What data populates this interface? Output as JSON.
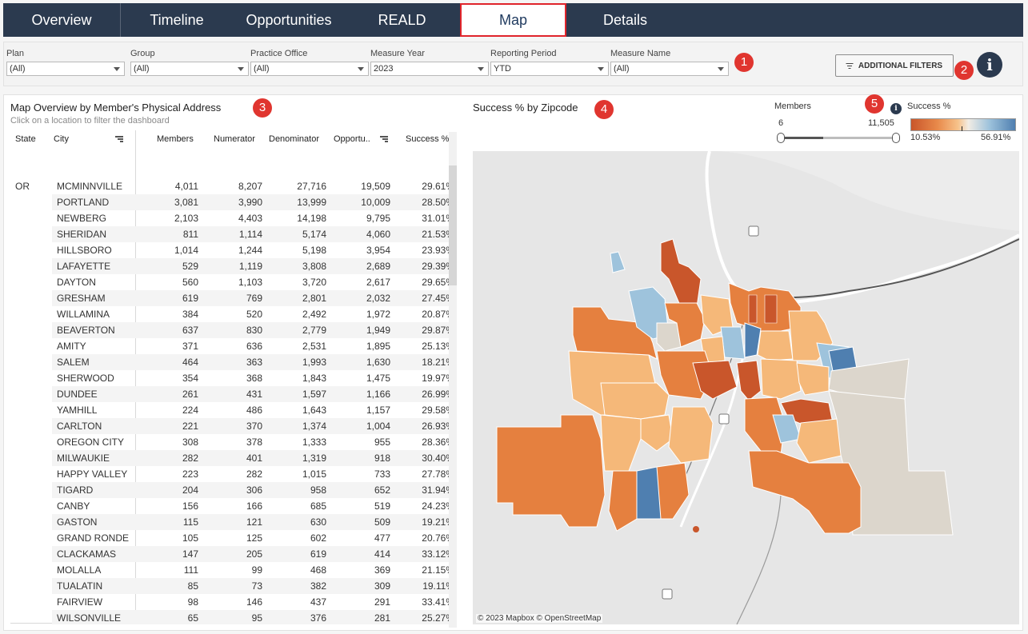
{
  "nav": {
    "tabs": [
      {
        "label": "Overview"
      },
      {
        "label": "Timeline"
      },
      {
        "label": "Opportunities"
      },
      {
        "label": "REALD"
      },
      {
        "label": "Map",
        "active": true
      },
      {
        "label": "Details"
      }
    ]
  },
  "filters": [
    {
      "label": "Plan",
      "value": "(All)"
    },
    {
      "label": "Group",
      "value": "(All)"
    },
    {
      "label": "Practice Office",
      "value": "(All)"
    },
    {
      "label": "Measure Year",
      "value": "2023"
    },
    {
      "label": "Reporting Period",
      "value": "YTD"
    },
    {
      "label": "Measure Name",
      "value": "(All)"
    }
  ],
  "badges": [
    "1",
    "2",
    "3",
    "4",
    "5"
  ],
  "additional_filters_label": "ADDITIONAL FILTERS",
  "info_glyph": "i",
  "left_panel": {
    "title": "Map Overview by Member's Physical Address",
    "subtitle": "Click on a location to filter the dashboard",
    "columns": [
      "State",
      "City",
      "Members",
      "Numerator",
      "Denominator",
      "Opportu..",
      "Success %"
    ],
    "state": "OR",
    "rows": [
      [
        "MCMINNVILLE",
        "4,011",
        "8,207",
        "27,716",
        "19,509",
        "29.61%"
      ],
      [
        "PORTLAND",
        "3,081",
        "3,990",
        "13,999",
        "10,009",
        "28.50%"
      ],
      [
        "NEWBERG",
        "2,103",
        "4,403",
        "14,198",
        "9,795",
        "31.01%"
      ],
      [
        "SHERIDAN",
        "811",
        "1,114",
        "5,174",
        "4,060",
        "21.53%"
      ],
      [
        "HILLSBORO",
        "1,014",
        "1,244",
        "5,198",
        "3,954",
        "23.93%"
      ],
      [
        "LAFAYETTE",
        "529",
        "1,119",
        "3,808",
        "2,689",
        "29.39%"
      ],
      [
        "DAYTON",
        "560",
        "1,103",
        "3,720",
        "2,617",
        "29.65%"
      ],
      [
        "GRESHAM",
        "619",
        "769",
        "2,801",
        "2,032",
        "27.45%"
      ],
      [
        "WILLAMINA",
        "384",
        "520",
        "2,492",
        "1,972",
        "20.87%"
      ],
      [
        "BEAVERTON",
        "637",
        "830",
        "2,779",
        "1,949",
        "29.87%"
      ],
      [
        "AMITY",
        "371",
        "636",
        "2,531",
        "1,895",
        "25.13%"
      ],
      [
        "SALEM",
        "464",
        "363",
        "1,993",
        "1,630",
        "18.21%"
      ],
      [
        "SHERWOOD",
        "354",
        "368",
        "1,843",
        "1,475",
        "19.97%"
      ],
      [
        "DUNDEE",
        "261",
        "431",
        "1,597",
        "1,166",
        "26.99%"
      ],
      [
        "YAMHILL",
        "224",
        "486",
        "1,643",
        "1,157",
        "29.58%"
      ],
      [
        "CARLTON",
        "221",
        "370",
        "1,374",
        "1,004",
        "26.93%"
      ],
      [
        "OREGON CITY",
        "308",
        "378",
        "1,333",
        "955",
        "28.36%"
      ],
      [
        "MILWAUKIE",
        "282",
        "401",
        "1,319",
        "918",
        "30.40%"
      ],
      [
        "HAPPY VALLEY",
        "223",
        "282",
        "1,015",
        "733",
        "27.78%"
      ],
      [
        "TIGARD",
        "204",
        "306",
        "958",
        "652",
        "31.94%"
      ],
      [
        "CANBY",
        "156",
        "166",
        "685",
        "519",
        "24.23%"
      ],
      [
        "GASTON",
        "115",
        "121",
        "630",
        "509",
        "19.21%"
      ],
      [
        "GRAND RONDE",
        "105",
        "125",
        "602",
        "477",
        "20.76%"
      ],
      [
        "CLACKAMAS",
        "147",
        "205",
        "619",
        "414",
        "33.12%"
      ],
      [
        "MOLALLA",
        "111",
        "99",
        "468",
        "369",
        "21.15%"
      ],
      [
        "TUALATIN",
        "85",
        "73",
        "382",
        "309",
        "19.11%"
      ],
      [
        "FAIRVIEW",
        "98",
        "146",
        "437",
        "291",
        "33.41%"
      ],
      [
        "WILSONVILLE",
        "65",
        "95",
        "376",
        "281",
        "25.27%"
      ]
    ]
  },
  "map_panel": {
    "title": "Success % by Zipcode",
    "attribution": "© 2023 Mapbox  © OpenStreetMap",
    "legend": {
      "members_label": "Members",
      "members_min": "6",
      "members_max": "11,505",
      "success_label": "Success %",
      "success_min": "10.53%",
      "success_max": "56.91%"
    },
    "colors": {
      "dark_orange": "#c9562b",
      "orange": "#e5803f",
      "light_orange": "#f5b879",
      "beige": "#dcd6cc",
      "light_blue": "#9ec3dc",
      "dark_blue": "#4f7fb0"
    }
  },
  "colors": {
    "nav_bg": "#2b3a4f",
    "active_outline": "#e0242b",
    "badge": "#e0352f"
  }
}
